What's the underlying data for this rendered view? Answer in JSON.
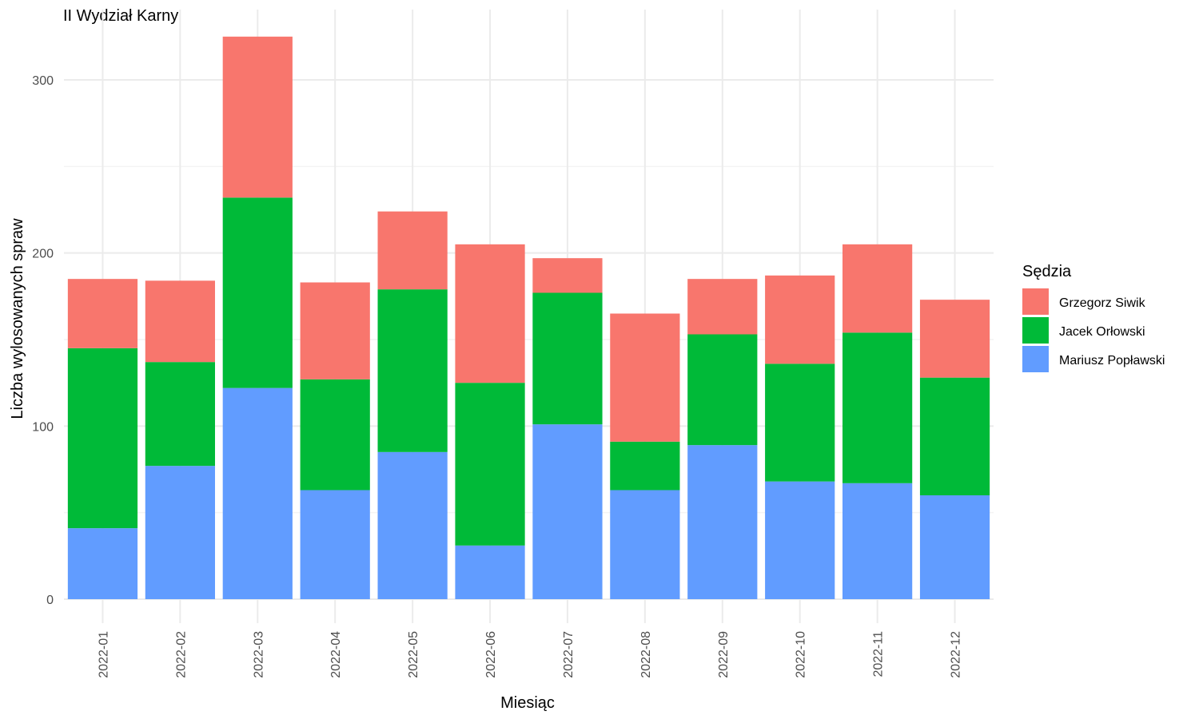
{
  "chart_data": {
    "type": "bar",
    "stacked": true,
    "title": "II Wydział Karny",
    "xlabel": "Miesiąc",
    "ylabel": "Liczba wylosowanych spraw",
    "categories": [
      "2022-01",
      "2022-02",
      "2022-03",
      "2022-04",
      "2022-05",
      "2022-06",
      "2022-07",
      "2022-08",
      "2022-09",
      "2022-10",
      "2022-11",
      "2022-12"
    ],
    "series": [
      {
        "name": "Mariusz Popławski",
        "color": "#619CFF",
        "values": [
          41,
          77,
          122,
          63,
          85,
          31,
          101,
          63,
          89,
          68,
          67,
          60
        ]
      },
      {
        "name": "Jacek Orłowski",
        "color": "#00BA38",
        "values": [
          104,
          60,
          110,
          64,
          94,
          94,
          76,
          28,
          64,
          68,
          87,
          68
        ]
      },
      {
        "name": "Grzegorz Siwik",
        "color": "#F8766D",
        "values": [
          40,
          47,
          93,
          56,
          45,
          80,
          20,
          74,
          32,
          51,
          51,
          45
        ]
      }
    ],
    "ylim": [
      0,
      325
    ],
    "yticks": [
      0,
      100,
      200,
      300
    ],
    "grid": true,
    "legend": {
      "title": "Sędzia",
      "position": "right",
      "order": [
        "Grzegorz Siwik",
        "Jacek Orłowski",
        "Mariusz Popławski"
      ]
    }
  }
}
